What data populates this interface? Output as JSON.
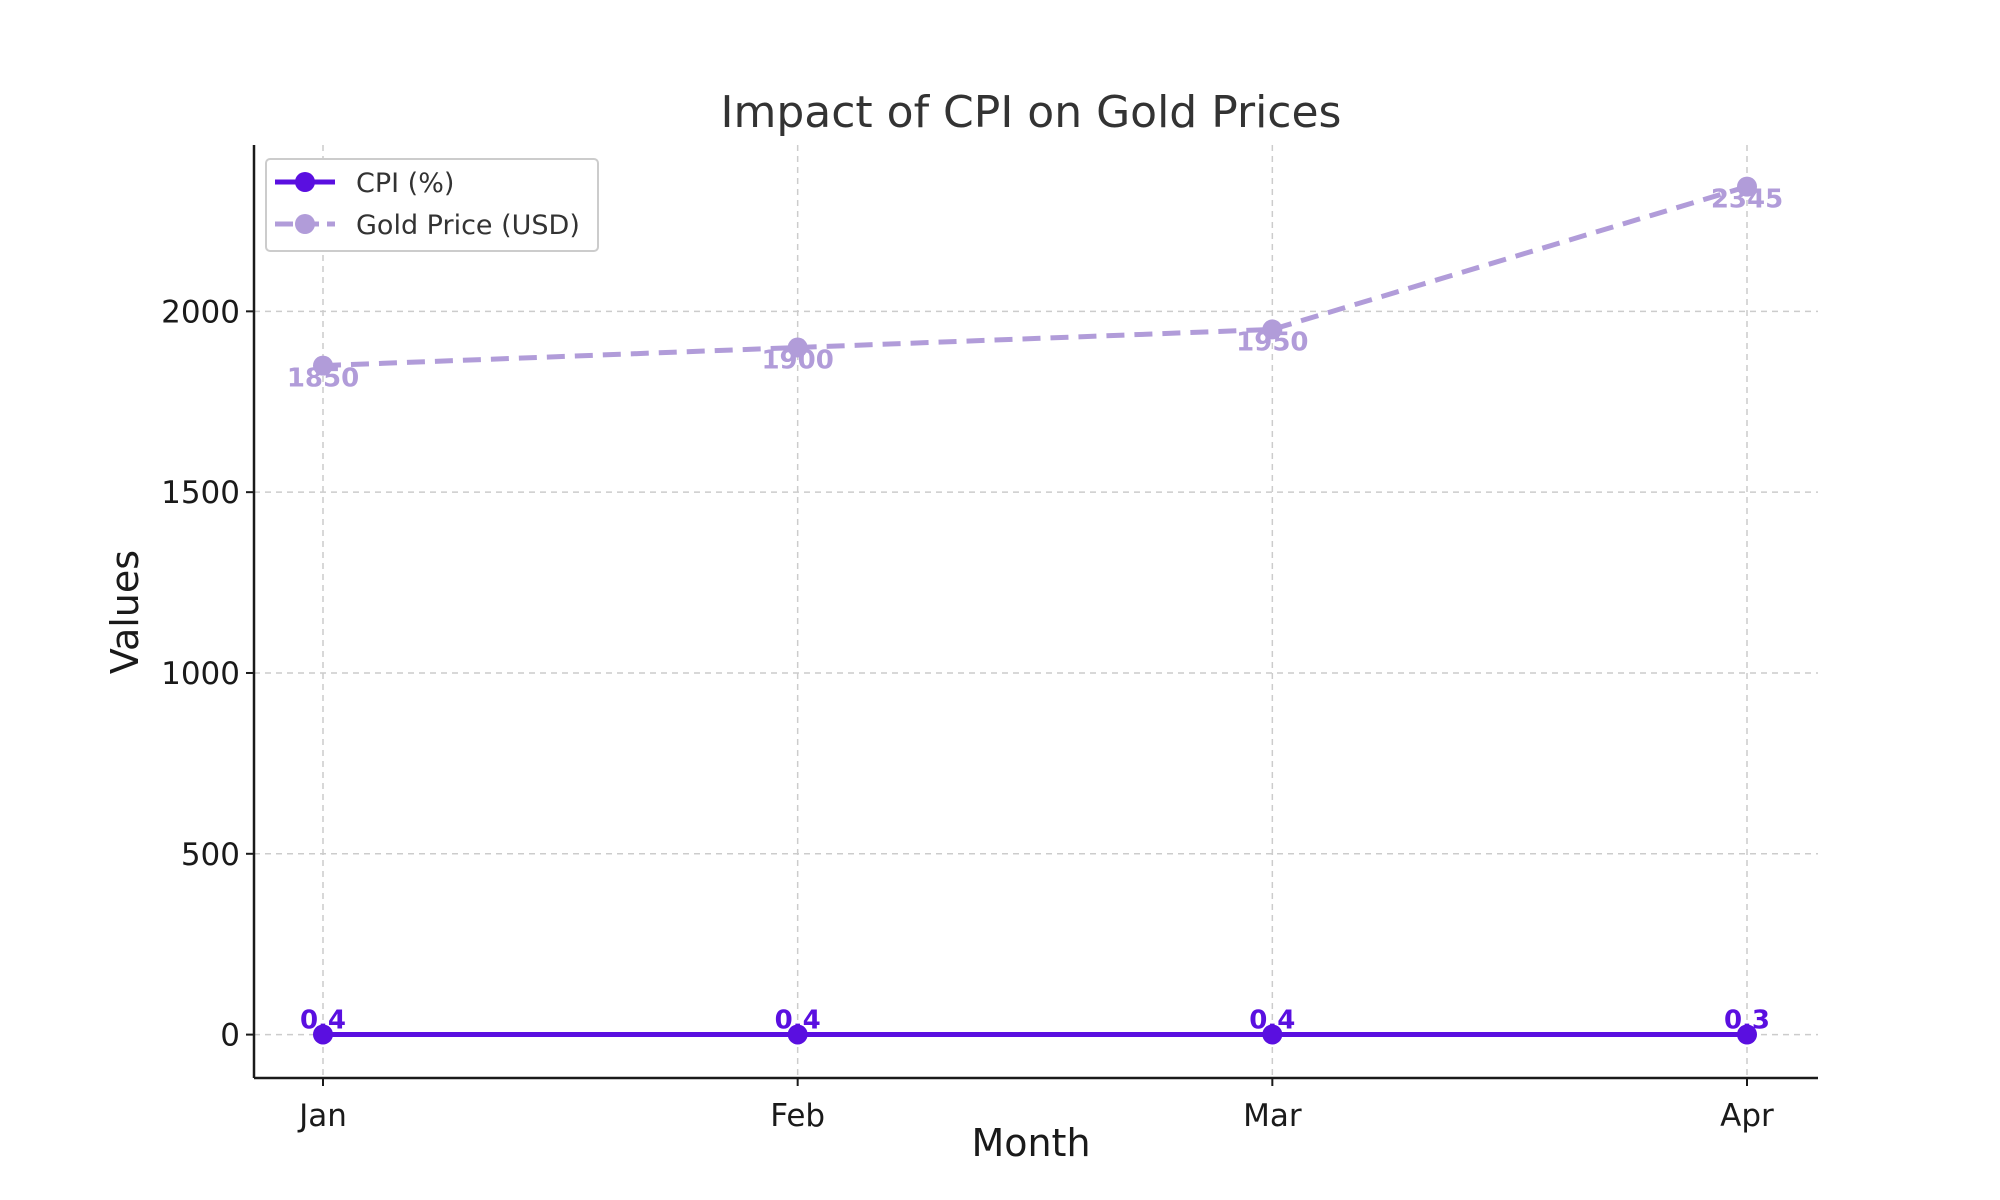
{
  "chart_data": {
    "type": "line",
    "title": "Impact of CPI on Gold Prices",
    "xlabel": "Month",
    "ylabel": "Values",
    "categories": [
      "Jan",
      "Feb",
      "Mar",
      "Apr"
    ],
    "ylim": [
      -120,
      2460
    ],
    "yticks": [
      0,
      500,
      1000,
      1500,
      2000
    ],
    "grid": true,
    "legend_position": "top-left",
    "series": [
      {
        "name": "CPI (%)",
        "values": [
          0.4,
          0.4,
          0.4,
          0.3
        ],
        "labels": [
          "0.4",
          "0.4",
          "0.4",
          "0.3"
        ],
        "color": "#5a0fe0",
        "line_style": "solid",
        "marker": "circle"
      },
      {
        "name": "Gold Price (USD)",
        "values": [
          1850,
          1900,
          1950,
          2345
        ],
        "labels": [
          "1850",
          "1900",
          "1950",
          "2345"
        ],
        "color": "#b19cd9",
        "line_style": "dashed",
        "marker": "circle"
      }
    ]
  }
}
